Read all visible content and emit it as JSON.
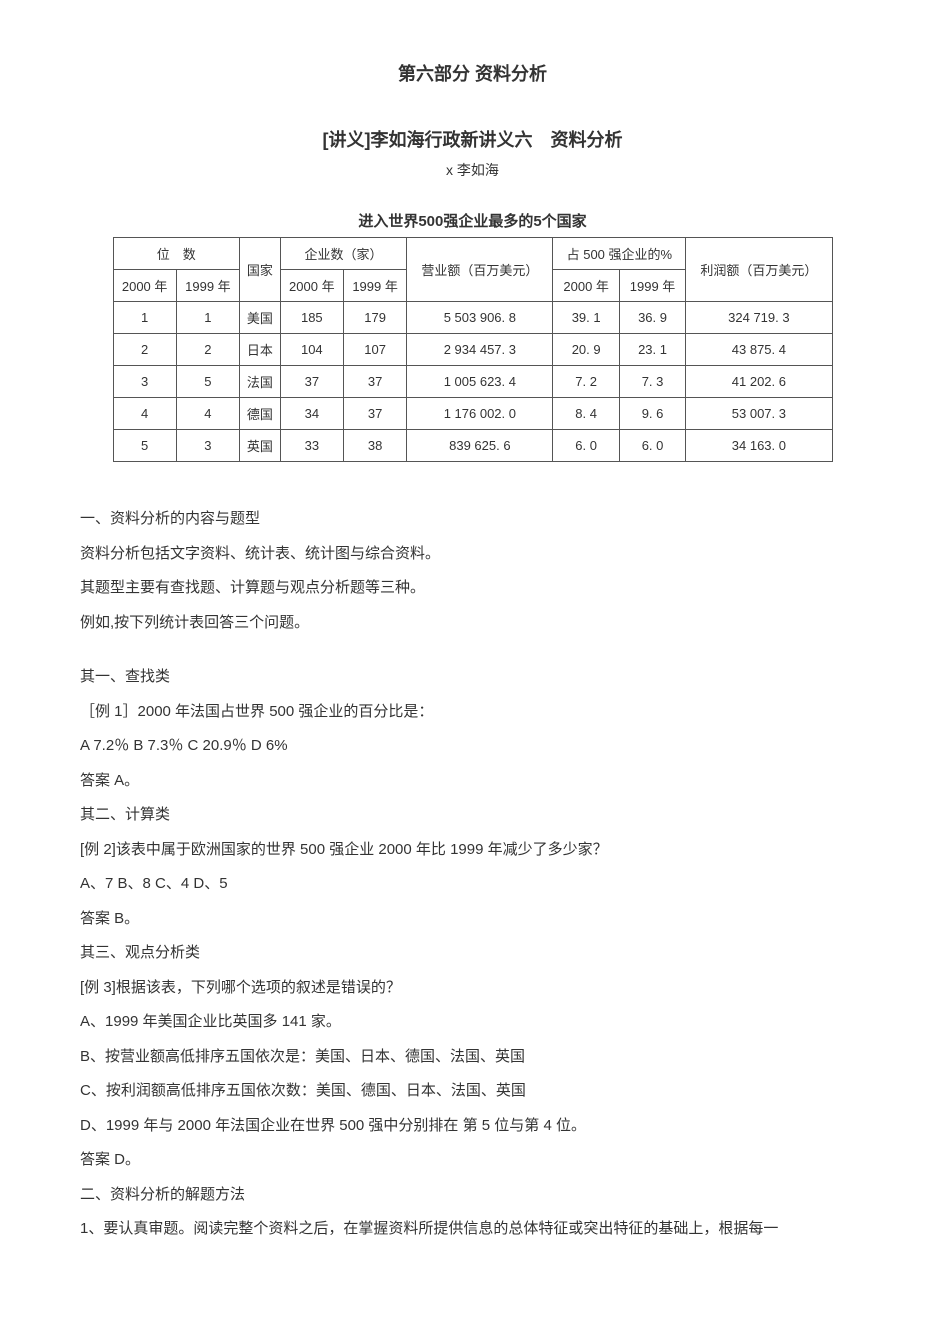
{
  "header": {
    "part_title": "第六部分 资料分析",
    "lecture_title": "[讲义]李如海行政新讲义六　资料分析",
    "author": "x 李如海"
  },
  "table": {
    "caption": "进入世界500强企业最多的5个国家",
    "header": {
      "rank_group": "位　数",
      "rank_2000": "2000 年",
      "rank_1999": "1999 年",
      "country": "国家",
      "count_group": "企业数（家）",
      "count_2000": "2000 年",
      "count_1999": "1999 年",
      "revenue": "营业额（百万美元）",
      "share_group": "占 500 强企业的%",
      "share_2000": "2000 年",
      "share_1999": "1999 年",
      "profit": "利润额（百万美元）"
    },
    "rows": [
      {
        "rank_2000": "1",
        "rank_1999": "1",
        "country": "美国",
        "count_2000": "185",
        "count_1999": "179",
        "revenue": "5 503 906. 8",
        "share_2000": "39. 1",
        "share_1999": "36. 9",
        "profit": "324 719. 3"
      },
      {
        "rank_2000": "2",
        "rank_1999": "2",
        "country": "日本",
        "count_2000": "104",
        "count_1999": "107",
        "revenue": "2 934 457. 3",
        "share_2000": "20. 9",
        "share_1999": "23. 1",
        "profit": "43 875. 4"
      },
      {
        "rank_2000": "3",
        "rank_1999": "5",
        "country": "法国",
        "count_2000": "37",
        "count_1999": "37",
        "revenue": "1 005 623. 4",
        "share_2000": "7. 2",
        "share_1999": "7. 3",
        "profit": "41 202. 6"
      },
      {
        "rank_2000": "4",
        "rank_1999": "4",
        "country": "德国",
        "count_2000": "34",
        "count_1999": "37",
        "revenue": "1 176 002. 0",
        "share_2000": "8. 4",
        "share_1999": "9. 6",
        "profit": "53 007. 3"
      },
      {
        "rank_2000": "5",
        "rank_1999": "3",
        "country": "英国",
        "count_2000": "33",
        "count_1999": "38",
        "revenue": "839 625. 6",
        "share_2000": "6. 0",
        "share_1999": "6. 0",
        "profit": "34 163. 0"
      }
    ]
  },
  "content": {
    "s1_title": "一、资料分析的内容与题型",
    "s1_p1": "资料分析包括文字资料、统计表、统计图与综合资料。",
    "s1_p2": "其题型主要有查找题、计算题与观点分析题等三种。",
    "s1_p3": "例如,按下列统计表回答三个问题。",
    "q1_title": "其一、查找类",
    "q1_stem": "［例 1］2000 年法国占世界 500 强企业的百分比是：",
    "q1_options": "A 7.2％ B 7.3％ C 20.9％ D 6%",
    "q1_answer": "答案 A。",
    "q2_title": "其二、计算类",
    "q2_stem": "[例 2]该表中属于欧洲国家的世界 500 强企业 2000 年比 1999 年减少了多少家？",
    "q2_options": "A、7 B、8 C、4 D、5",
    "q2_answer": "答案 B。",
    "q3_title": "其三、观点分析类",
    "q3_stem": "[例 3]根据该表，下列哪个选项的叙述是错误的？",
    "q3_optA": "A、1999 年美国企业比英国多 141 家。",
    "q3_optB": "B、按营业额高低排序五国依次是：美国、日本、德国、法国、英国",
    "q3_optC": "C、按利润额高低排序五国依次数：美国、德国、日本、法国、英国",
    "q3_optD": "D、1999 年与 2000 年法国企业在世界 500 强中分别排在 第 5 位与第 4 位。",
    "q3_answer": "答案 D。",
    "s2_title": "二、资料分析的解题方法",
    "s2_p1": "1、要认真审题。阅读完整个资料之后，在掌握资料所提供信息的总体特征或突出特征的基础上，根据每一"
  }
}
